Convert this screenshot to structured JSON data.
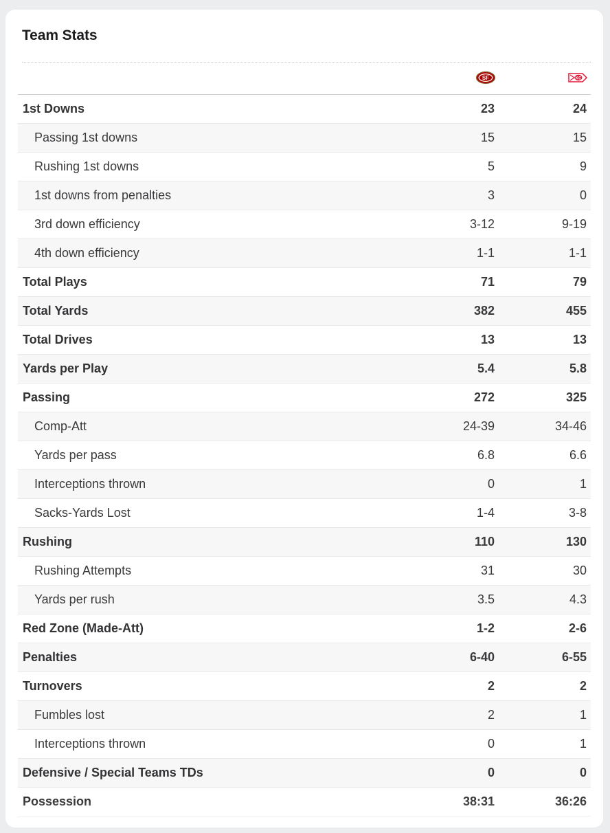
{
  "title": "Team Stats",
  "teams": {
    "home": {
      "logo_icon": "49ers-logo-icon",
      "color": "#aa0000"
    },
    "away": {
      "logo_icon": "chiefs-logo-icon",
      "color": "#e31837"
    }
  },
  "rows": [
    {
      "label": "1st Downs",
      "home": "23",
      "away": "24",
      "level": "main"
    },
    {
      "label": "Passing 1st downs",
      "home": "15",
      "away": "15",
      "level": "sub"
    },
    {
      "label": "Rushing 1st downs",
      "home": "5",
      "away": "9",
      "level": "sub"
    },
    {
      "label": "1st downs from penalties",
      "home": "3",
      "away": "0",
      "level": "sub"
    },
    {
      "label": "3rd down efficiency",
      "home": "3-12",
      "away": "9-19",
      "level": "sub"
    },
    {
      "label": "4th down efficiency",
      "home": "1-1",
      "away": "1-1",
      "level": "sub"
    },
    {
      "label": "Total Plays",
      "home": "71",
      "away": "79",
      "level": "main"
    },
    {
      "label": "Total Yards",
      "home": "382",
      "away": "455",
      "level": "main"
    },
    {
      "label": "Total Drives",
      "home": "13",
      "away": "13",
      "level": "main"
    },
    {
      "label": "Yards per Play",
      "home": "5.4",
      "away": "5.8",
      "level": "main"
    },
    {
      "label": "Passing",
      "home": "272",
      "away": "325",
      "level": "main"
    },
    {
      "label": "Comp-Att",
      "home": "24-39",
      "away": "34-46",
      "level": "sub"
    },
    {
      "label": "Yards per pass",
      "home": "6.8",
      "away": "6.6",
      "level": "sub"
    },
    {
      "label": "Interceptions thrown",
      "home": "0",
      "away": "1",
      "level": "sub"
    },
    {
      "label": "Sacks-Yards Lost",
      "home": "1-4",
      "away": "3-8",
      "level": "sub"
    },
    {
      "label": "Rushing",
      "home": "110",
      "away": "130",
      "level": "main"
    },
    {
      "label": "Rushing Attempts",
      "home": "31",
      "away": "30",
      "level": "sub"
    },
    {
      "label": "Yards per rush",
      "home": "3.5",
      "away": "4.3",
      "level": "sub"
    },
    {
      "label": "Red Zone (Made-Att)",
      "home": "1-2",
      "away": "2-6",
      "level": "main"
    },
    {
      "label": "Penalties",
      "home": "6-40",
      "away": "6-55",
      "level": "main"
    },
    {
      "label": "Turnovers",
      "home": "2",
      "away": "2",
      "level": "main"
    },
    {
      "label": "Fumbles lost",
      "home": "2",
      "away": "1",
      "level": "sub"
    },
    {
      "label": "Interceptions thrown",
      "home": "0",
      "away": "1",
      "level": "sub"
    },
    {
      "label": "Defensive / Special Teams TDs",
      "home": "0",
      "away": "0",
      "level": "main"
    },
    {
      "label": "Possession",
      "home": "38:31",
      "away": "36:26",
      "level": "main"
    }
  ]
}
